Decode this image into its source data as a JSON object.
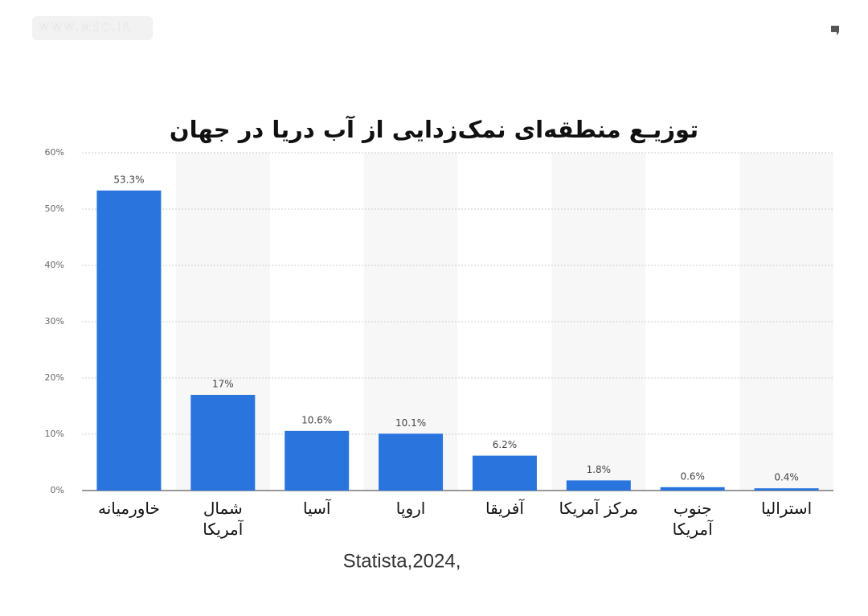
{
  "watermark": "WWW.MSC.IR",
  "chart_data": {
    "type": "bar",
    "title": "توزیـع منطقه‌ای نمک‌زدایی از آب دریا در جهان",
    "categories": [
      "خاورمیانه",
      "شمال آمریکا",
      "آسیا",
      "اروپا",
      "آفریقا",
      "مرکز آمریکا",
      "جنوب آمریکا",
      "استرالیا"
    ],
    "values": [
      53.3,
      17,
      10.6,
      10.1,
      6.2,
      1.8,
      0.6,
      0.4
    ],
    "value_labels": [
      "53.3%",
      "17%",
      "10.6%",
      "10.1%",
      "6.2%",
      "1.8%",
      "0.6%",
      "0.4%"
    ],
    "color": "#2a74de",
    "ylim": [
      0,
      60
    ],
    "yticks": [
      {
        "value": 0,
        "label": "0%"
      },
      {
        "value": 10,
        "label": "10%"
      },
      {
        "value": 20,
        "label": "20%"
      },
      {
        "value": 30,
        "label": "30%"
      },
      {
        "value": 40,
        "label": "40%"
      },
      {
        "value": 50,
        "label": "50%"
      },
      {
        "value": 60,
        "label": "60%"
      }
    ],
    "grid": true,
    "source": "Statista,2024,"
  }
}
